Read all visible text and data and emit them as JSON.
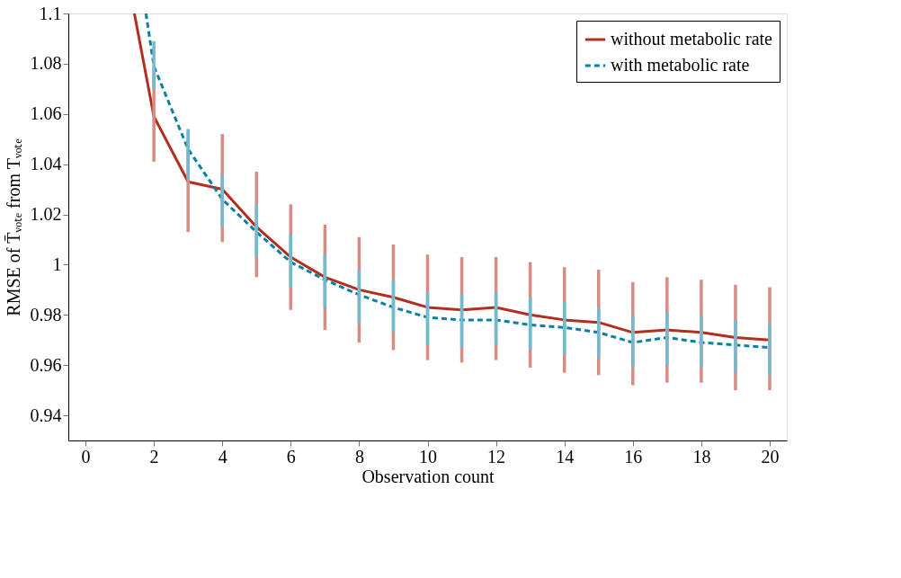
{
  "chart_data": {
    "type": "line",
    "xlabel": "Observation count",
    "ylabel": "RMSE of T̄ᵥₒₜₑ from Tᵥₒₜₑ",
    "xlim": [
      -0.5,
      20.5
    ],
    "xticks": [
      0,
      2,
      4,
      6,
      8,
      10,
      12,
      14,
      16,
      18,
      20
    ],
    "ylim": [
      0.93,
      1.1
    ],
    "yticks": [
      0.94,
      0.96,
      0.98,
      1,
      1.02,
      1.04,
      1.06,
      1.08,
      1.1
    ],
    "grid": false,
    "legend": "top right",
    "marker": "none",
    "series": [
      {
        "name": "without metabolic rate",
        "color": "#b22e1f",
        "line_style": "solid",
        "x": [
          1.43,
          2,
          3,
          4,
          5,
          6,
          7,
          8,
          9,
          10,
          11,
          12,
          13,
          14,
          15,
          16,
          17,
          18,
          19,
          20
        ],
        "values": [
          1.1,
          1.059,
          1.033,
          1.03,
          1.015,
          1.003,
          0.995,
          0.99,
          0.987,
          0.983,
          0.982,
          0.983,
          0.98,
          0.978,
          0.977,
          0.973,
          0.974,
          0.973,
          0.971,
          0.97
        ],
        "errors": [
          null,
          [
            1.041,
            1.078
          ],
          [
            1.013,
            1.053
          ],
          [
            1.009,
            1.052
          ],
          [
            0.995,
            1.037
          ],
          [
            0.982,
            1.024
          ],
          [
            0.974,
            1.016
          ],
          [
            0.969,
            1.011
          ],
          [
            0.966,
            1.008
          ],
          [
            0.962,
            1.004
          ],
          [
            0.961,
            1.003
          ],
          [
            0.962,
            1.003
          ],
          [
            0.959,
            1.001
          ],
          [
            0.957,
            0.999
          ],
          [
            0.956,
            0.998
          ],
          [
            0.952,
            0.993
          ],
          [
            0.953,
            0.995
          ],
          [
            0.953,
            0.994
          ],
          [
            0.95,
            0.992
          ],
          [
            0.95,
            0.991
          ]
        ]
      },
      {
        "name": "with metabolic rate",
        "color": "#0a7fa6",
        "line_style": "dashed",
        "x": [
          1.77,
          2,
          3,
          4,
          5,
          6,
          7,
          8,
          9,
          10,
          11,
          12,
          13,
          14,
          15,
          16,
          17,
          18,
          19,
          20
        ],
        "values": [
          1.1,
          1.079,
          1.046,
          1.026,
          1.013,
          1.001,
          0.994,
          0.988,
          0.983,
          0.979,
          0.978,
          0.978,
          0.976,
          0.975,
          0.973,
          0.969,
          0.971,
          0.969,
          0.968,
          0.967
        ],
        "errors": [
          null,
          [
            1.07,
            1.089
          ],
          [
            1.034,
            1.054
          ],
          [
            1.015,
            1.036
          ],
          [
            1.003,
            1.024
          ],
          [
            0.991,
            1.012
          ],
          [
            0.983,
            1.004
          ],
          [
            0.977,
            0.998
          ],
          [
            0.973,
            0.994
          ],
          [
            0.968,
            0.989
          ],
          [
            0.967,
            0.988
          ],
          [
            0.968,
            0.989
          ],
          [
            0.966,
            0.987
          ],
          [
            0.964,
            0.985
          ],
          [
            0.963,
            0.983
          ],
          [
            0.959,
            0.98
          ],
          [
            0.96,
            0.981
          ],
          [
            0.959,
            0.98
          ],
          [
            0.957,
            0.978
          ],
          [
            0.956,
            0.977
          ]
        ]
      }
    ]
  }
}
